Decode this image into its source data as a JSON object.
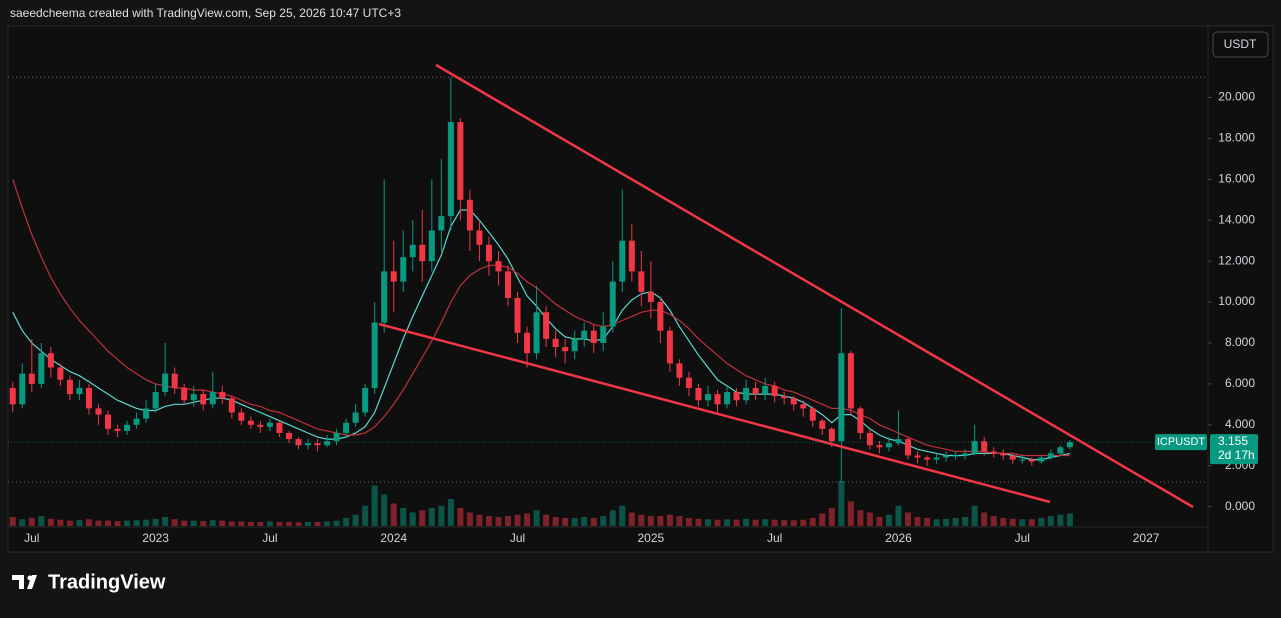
{
  "header": "saeedcheema created with TradingView.com, Sep 25, 2026 10:47 UTC+3",
  "currency_button": "USDT",
  "brand": "TradingView",
  "chart_data": {
    "type": "candlestick",
    "categories": [
      null,
      null,
      "Jul",
      null,
      null,
      null,
      null,
      null,
      null,
      null,
      null,
      null,
      null,
      null,
      null,
      "2023",
      null,
      null,
      null,
      null,
      null,
      null,
      null,
      null,
      null,
      null,
      null,
      "Jul",
      null,
      null,
      null,
      null,
      null,
      null,
      null,
      null,
      null,
      null,
      null,
      null,
      "2024",
      null,
      null,
      null,
      null,
      null,
      null,
      null,
      null,
      null,
      null,
      null,
      null,
      "Jul",
      null,
      null,
      null,
      null,
      null,
      null,
      null,
      null,
      null,
      null,
      null,
      null,
      null,
      "2025",
      null,
      null,
      null,
      null,
      null,
      null,
      null,
      null,
      null,
      null,
      null,
      null,
      "Jul",
      null,
      null,
      null,
      null,
      null,
      null,
      null,
      null,
      null,
      null,
      null,
      null,
      "2026",
      null,
      null,
      null,
      null,
      null,
      null,
      null,
      null,
      null,
      null,
      null,
      null,
      "Jul",
      null,
      null,
      null,
      null,
      null,
      null,
      null,
      null,
      null,
      null,
      null,
      null,
      "2027",
      null,
      null,
      null,
      null,
      null,
      null
    ],
    "open": [
      5.8,
      5.0,
      6.5,
      6.0,
      7.5,
      6.8,
      6.2,
      5.5,
      5.8,
      4.8,
      4.5,
      3.8,
      3.7,
      4.0,
      4.3,
      4.8,
      5.6,
      6.5,
      5.8,
      5.2,
      5.5,
      5.0,
      5.6,
      5.3,
      4.6,
      4.2,
      4.0,
      3.9,
      4.1,
      3.6,
      3.3,
      3.0,
      3.1,
      3.0,
      3.2,
      3.6,
      4.1,
      4.6,
      5.8,
      9.0,
      11.5,
      11.0,
      12.2,
      12.8,
      12.0,
      13.5,
      14.2,
      18.8,
      15.0,
      13.5,
      12.8,
      12.0,
      11.5,
      10.2,
      8.5,
      7.5,
      9.5,
      8.2,
      7.8,
      7.6,
      8.2,
      8.6,
      8.0,
      8.8,
      11.0,
      13.0,
      11.5,
      10.5,
      10.0,
      8.6,
      7.0,
      6.3,
      5.8,
      5.2,
      5.5,
      5.0,
      5.6,
      5.2,
      5.8,
      5.5,
      5.9,
      5.4,
      5.3,
      5.0,
      4.8,
      4.2,
      3.8,
      3.2,
      7.5,
      4.8,
      3.6,
      3.0,
      2.9,
      3.1,
      3.3,
      2.5,
      2.4,
      2.3,
      2.4,
      2.5,
      2.5,
      2.6,
      3.2,
      2.7,
      2.6,
      2.5,
      2.3,
      2.3,
      2.2,
      2.4,
      2.6,
      2.9,
      null,
      null,
      null,
      null,
      null,
      null,
      null,
      null,
      null,
      null,
      null,
      null,
      null,
      null
    ],
    "high": [
      6.1,
      7.0,
      8.2,
      8.0,
      7.8,
      7.0,
      6.4,
      6.2,
      6.0,
      5.0,
      4.7,
      4.0,
      4.2,
      4.6,
      5.2,
      6.0,
      8.0,
      6.8,
      6.0,
      5.9,
      5.7,
      6.6,
      5.9,
      5.4,
      4.8,
      4.4,
      4.2,
      4.3,
      4.2,
      3.7,
      3.4,
      3.3,
      3.3,
      3.5,
      3.8,
      4.3,
      5.0,
      6.0,
      10.0,
      16.0,
      13.0,
      13.5,
      14.0,
      14.5,
      16.0,
      17.0,
      21.0,
      19.0,
      15.5,
      14.0,
      13.2,
      12.5,
      11.8,
      10.5,
      8.8,
      10.8,
      9.8,
      8.6,
      8.2,
      8.6,
      9.0,
      8.9,
      9.5,
      12.0,
      15.5,
      13.8,
      12.5,
      12.0,
      10.2,
      8.8,
      7.2,
      6.6,
      6.0,
      5.9,
      5.7,
      5.9,
      5.8,
      6.2,
      6.1,
      6.3,
      6.1,
      5.6,
      5.4,
      5.2,
      4.9,
      4.3,
      3.9,
      9.7,
      7.6,
      4.9,
      3.8,
      3.2,
      3.4,
      4.7,
      3.4,
      2.7,
      2.5,
      2.6,
      2.7,
      2.7,
      2.8,
      4.0,
      3.4,
      2.9,
      2.8,
      2.6,
      2.5,
      2.4,
      2.5,
      2.8,
      3.0,
      3.25,
      null,
      null,
      null,
      null,
      null,
      null,
      null,
      null,
      null,
      null,
      null,
      null,
      null,
      null
    ],
    "low": [
      4.6,
      4.8,
      5.6,
      5.8,
      6.3,
      5.9,
      5.2,
      5.2,
      4.5,
      4.0,
      3.5,
      3.4,
      3.5,
      3.8,
      4.1,
      4.6,
      5.4,
      5.5,
      5.0,
      4.9,
      4.7,
      4.8,
      5.0,
      4.3,
      4.0,
      3.8,
      3.6,
      3.7,
      3.4,
      3.1,
      2.8,
      2.8,
      2.7,
      2.9,
      3.0,
      3.4,
      3.9,
      4.4,
      5.5,
      8.5,
      9.5,
      10.5,
      11.5,
      11.0,
      11.5,
      12.5,
      13.5,
      14.0,
      12.5,
      12.0,
      11.3,
      10.8,
      9.8,
      8.0,
      6.8,
      7.2,
      7.8,
      7.3,
      7.0,
      7.2,
      7.8,
      7.5,
      7.6,
      8.5,
      10.5,
      11.0,
      9.8,
      9.2,
      8.0,
      6.6,
      5.9,
      5.4,
      4.9,
      4.9,
      4.6,
      4.8,
      4.9,
      5.0,
      5.2,
      5.2,
      5.1,
      5.0,
      4.7,
      4.4,
      3.9,
      3.5,
      2.9,
      1.2,
      4.5,
      3.3,
      2.8,
      2.6,
      2.7,
      3.0,
      2.3,
      2.1,
      2.0,
      2.1,
      2.2,
      2.3,
      2.3,
      2.5,
      2.5,
      2.4,
      2.3,
      2.1,
      2.1,
      2.0,
      2.1,
      2.3,
      2.5,
      2.8,
      null,
      null,
      null,
      null,
      null,
      null,
      null,
      null,
      null,
      null,
      null,
      null,
      null,
      null
    ],
    "close": [
      5.0,
      6.5,
      6.0,
      7.5,
      6.8,
      6.2,
      5.5,
      5.8,
      4.8,
      4.5,
      3.8,
      3.7,
      4.0,
      4.3,
      4.8,
      5.6,
      6.5,
      5.8,
      5.2,
      5.5,
      5.0,
      5.6,
      5.3,
      4.6,
      4.2,
      4.0,
      3.9,
      4.1,
      3.6,
      3.3,
      3.0,
      3.1,
      3.0,
      3.2,
      3.6,
      4.1,
      4.6,
      5.8,
      9.0,
      11.5,
      11.0,
      12.2,
      12.8,
      12.0,
      13.5,
      14.2,
      18.8,
      15.0,
      13.5,
      12.8,
      12.0,
      11.5,
      10.2,
      8.5,
      7.5,
      9.5,
      8.2,
      7.8,
      7.6,
      8.2,
      8.6,
      8.0,
      8.8,
      11.0,
      13.0,
      11.5,
      10.5,
      10.0,
      8.6,
      7.0,
      6.3,
      5.8,
      5.2,
      5.5,
      5.0,
      5.6,
      5.2,
      5.8,
      5.5,
      5.9,
      5.4,
      5.3,
      5.0,
      4.8,
      4.2,
      3.8,
      3.2,
      7.5,
      4.8,
      3.6,
      3.0,
      2.9,
      3.1,
      3.3,
      2.5,
      2.4,
      2.3,
      2.4,
      2.5,
      2.5,
      2.6,
      3.2,
      2.7,
      2.6,
      2.5,
      2.3,
      2.3,
      2.2,
      2.4,
      2.6,
      2.9,
      3.155,
      null,
      null,
      null,
      null,
      null,
      null,
      null,
      null,
      null,
      null,
      null,
      null,
      null,
      null
    ],
    "volume": [
      20,
      15,
      18,
      22,
      16,
      14,
      12,
      13,
      15,
      12,
      12,
      11,
      12,
      13,
      14,
      16,
      20,
      15,
      12,
      12,
      11,
      13,
      12,
      10,
      10,
      9,
      9,
      10,
      9,
      9,
      8,
      9,
      9,
      10,
      12,
      18,
      25,
      45,
      90,
      70,
      50,
      40,
      30,
      35,
      40,
      45,
      60,
      40,
      30,
      25,
      22,
      20,
      22,
      25,
      28,
      35,
      25,
      20,
      18,
      18,
      20,
      18,
      22,
      35,
      45,
      30,
      25,
      22,
      22,
      25,
      22,
      18,
      16,
      15,
      14,
      15,
      14,
      16,
      14,
      15,
      14,
      13,
      13,
      14,
      18,
      28,
      40,
      100,
      55,
      35,
      30,
      20,
      25,
      45,
      30,
      20,
      18,
      15,
      16,
      18,
      20,
      45,
      30,
      22,
      18,
      16,
      15,
      15,
      18,
      22,
      25,
      28,
      null,
      null,
      null,
      null,
      null,
      null,
      null,
      null,
      null,
      null,
      null,
      null,
      null,
      null
    ],
    "series": [
      {
        "color": "#5ad8d0",
        "values": [
          9.5,
          8.6,
          8.0,
          7.6,
          7.2,
          6.9,
          6.6,
          6.4,
          6.1,
          5.8,
          5.5,
          5.2,
          5.0,
          4.8,
          4.7,
          4.7,
          4.9,
          5.0,
          5.0,
          5.1,
          5.2,
          5.3,
          5.3,
          5.2,
          5.0,
          4.8,
          4.6,
          4.4,
          4.2,
          4.0,
          3.8,
          3.6,
          3.4,
          3.3,
          3.3,
          3.4,
          3.6,
          3.9,
          4.6,
          5.8,
          7.0,
          8.2,
          9.3,
          10.3,
          11.3,
          12.3,
          13.7,
          14.5,
          14.5,
          14.0,
          13.4,
          12.8,
          12.1,
          11.2,
          10.3,
          9.8,
          9.2,
          8.7,
          8.3,
          8.2,
          8.2,
          8.1,
          8.2,
          8.8,
          9.6,
          10.1,
          10.4,
          10.5,
          10.2,
          9.6,
          8.8,
          8.1,
          7.4,
          6.8,
          6.2,
          5.9,
          5.6,
          5.5,
          5.5,
          5.5,
          5.5,
          5.4,
          5.3,
          5.1,
          4.8,
          4.5,
          4.1,
          4.5,
          4.5,
          4.2,
          3.8,
          3.5,
          3.3,
          3.2,
          3.0,
          2.8,
          2.7,
          2.6,
          2.5,
          2.5,
          2.5,
          2.6,
          2.6,
          2.6,
          2.6,
          2.5,
          2.4,
          2.3,
          2.3,
          2.4,
          2.5,
          2.6,
          null,
          null,
          null,
          null,
          null,
          null,
          null,
          null,
          null,
          null,
          null,
          null,
          null,
          null
        ]
      },
      {
        "color": "#c0303c",
        "values": [
          16.0,
          14.6,
          13.3,
          12.2,
          11.2,
          10.4,
          9.7,
          9.1,
          8.6,
          8.1,
          7.6,
          7.2,
          6.8,
          6.5,
          6.2,
          6.0,
          5.9,
          5.8,
          5.8,
          5.7,
          5.7,
          5.6,
          5.5,
          5.4,
          5.2,
          5.0,
          4.9,
          4.7,
          4.6,
          4.4,
          4.2,
          4.0,
          3.8,
          3.7,
          3.6,
          3.5,
          3.5,
          3.6,
          3.9,
          4.4,
          5.0,
          5.7,
          6.5,
          7.3,
          8.1,
          9.0,
          10.0,
          10.8,
          11.3,
          11.6,
          11.8,
          11.8,
          11.7,
          11.4,
          11.0,
          10.7,
          10.3,
          9.9,
          9.6,
          9.3,
          9.1,
          8.9,
          8.8,
          8.9,
          9.1,
          9.3,
          9.5,
          9.6,
          9.6,
          9.4,
          9.1,
          8.7,
          8.2,
          7.8,
          7.4,
          7.0,
          6.7,
          6.4,
          6.2,
          6.0,
          5.9,
          5.7,
          5.6,
          5.4,
          5.2,
          5.0,
          4.8,
          4.8,
          4.7,
          4.5,
          4.3,
          4.0,
          3.8,
          3.6,
          3.4,
          3.2,
          3.0,
          2.9,
          2.8,
          2.7,
          2.7,
          2.7,
          2.7,
          2.6,
          2.6,
          2.6,
          2.5,
          2.5,
          2.5,
          2.5,
          2.5,
          2.5,
          null,
          null,
          null,
          null,
          null,
          null,
          null,
          null,
          null,
          null,
          null,
          null,
          null,
          null
        ]
      }
    ],
    "up_color": "#089981",
    "down_color": "#f23645",
    "ylim": [
      -0.9,
      23.4
    ],
    "yticks": [
      {
        "value": 0,
        "label": "0.000"
      },
      {
        "value": 2,
        "label": "2.000"
      },
      {
        "value": 4,
        "label": "4.000"
      },
      {
        "value": 6,
        "label": "6.000"
      },
      {
        "value": 8,
        "label": "8.000"
      },
      {
        "value": 10,
        "label": "10.000"
      },
      {
        "value": 12,
        "label": "12.000"
      },
      {
        "value": 14,
        "label": "14.000"
      },
      {
        "value": 16,
        "label": "16.000"
      },
      {
        "value": 18,
        "label": "18.000"
      },
      {
        "value": 20,
        "label": "20.000"
      }
    ],
    "hlines": [
      21.0,
      1.2
    ],
    "last_price": {
      "symbol": "ICPUSDT",
      "value": 3.155,
      "countdown": "2d 17h"
    }
  }
}
